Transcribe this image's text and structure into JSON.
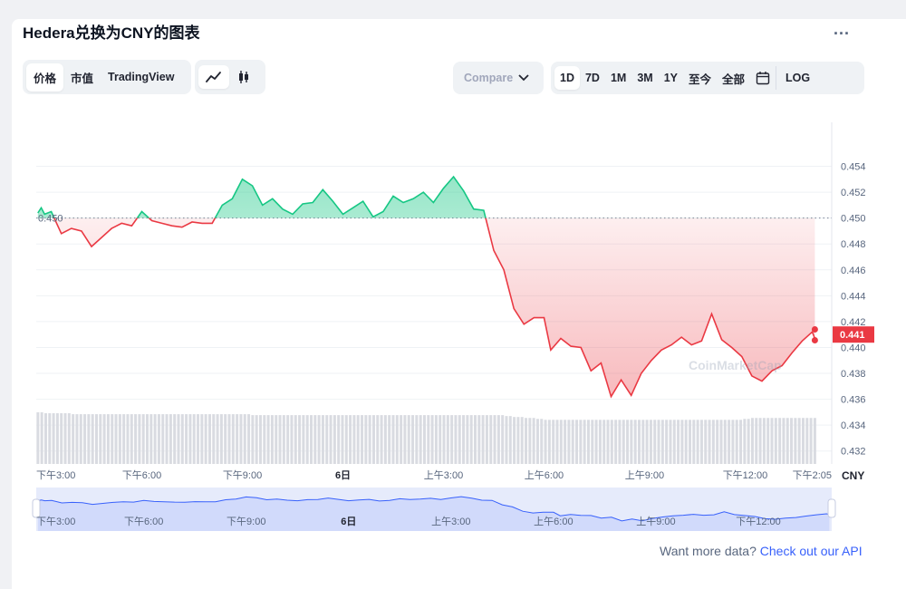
{
  "page": {
    "title": "Hedera兑换为CNY的图表",
    "more_label": "...",
    "chart_type_tabs": [
      {
        "label": "价格",
        "active": true
      },
      {
        "label": "市值",
        "active": false
      },
      {
        "label": "TradingView",
        "active": false
      }
    ],
    "style_tabs": [
      {
        "icon": "line-chart-icon",
        "active": true
      },
      {
        "icon": "candlestick-icon",
        "active": false
      }
    ],
    "compare_label": "Compare",
    "range_tabs": [
      {
        "label": "1D",
        "active": true
      },
      {
        "label": "7D",
        "active": false
      },
      {
        "label": "1M",
        "active": false
      },
      {
        "label": "3M",
        "active": false
      },
      {
        "label": "1Y",
        "active": false
      },
      {
        "label": "至今",
        "active": false
      },
      {
        "label": "全部",
        "active": false
      }
    ],
    "calendar_icon": "calendar-icon",
    "log_label": "LOG",
    "footer_text": "Want more data?",
    "footer_link": "Check out our API",
    "watermark": "CoinMarketCap",
    "colors": {
      "up": "#16c784",
      "down": "#ea3943",
      "grid": "#eff2f5",
      "axis_text": "#58667e",
      "volume": "#d9dbe1",
      "navigator": "#e6ebfb",
      "navigator_line": "#3861fb"
    }
  },
  "chart_data": {
    "type": "line",
    "currency_label": "CNY",
    "baseline": 0.45,
    "baseline_label": "0.450",
    "last_value": 0.441,
    "last_label": "0.441",
    "ylim": [
      0.431,
      0.456
    ],
    "y_ticks": [
      0.454,
      0.452,
      0.45,
      0.448,
      0.446,
      0.444,
      0.442,
      0.44,
      0.438,
      0.436,
      0.434,
      0.432
    ],
    "y_tick_labels": [
      "0.454",
      "0.452",
      "0.450",
      "0.448",
      "0.446",
      "0.444",
      "0.442",
      "0.440",
      "0.438",
      "0.436",
      "0.434",
      "0.432"
    ],
    "x_range": [
      14.85,
      38.15
    ],
    "x_ticks": [
      15,
      18,
      21,
      24,
      27,
      30,
      33,
      36,
      38.08
    ],
    "x_tick_labels": [
      "下午3:00",
      "下午6:00",
      "下午9:00",
      "6日",
      "上午3:00",
      "上午6:00",
      "上午9:00",
      "下午12:00",
      "下午2:05"
    ],
    "x": [
      14.9,
      15.0,
      15.1,
      15.3,
      15.6,
      15.9,
      16.2,
      16.5,
      16.8,
      17.1,
      17.4,
      17.7,
      18.0,
      18.3,
      18.6,
      18.9,
      19.2,
      19.5,
      19.8,
      20.1,
      20.4,
      20.7,
      21.0,
      21.3,
      21.6,
      21.9,
      22.2,
      22.5,
      22.8,
      23.1,
      23.4,
      23.7,
      24.0,
      24.3,
      24.6,
      24.9,
      25.2,
      25.5,
      25.8,
      26.1,
      26.4,
      26.7,
      27.0,
      27.3,
      27.6,
      27.9,
      28.2,
      28.5,
      28.8,
      29.1,
      29.4,
      29.7,
      30.0,
      30.2,
      30.5,
      30.8,
      31.1,
      31.4,
      31.7,
      32.0,
      32.3,
      32.6,
      32.9,
      33.2,
      33.5,
      33.8,
      34.1,
      34.4,
      34.7,
      35.0,
      35.3,
      35.6,
      35.9,
      36.2,
      36.5,
      36.8,
      37.1,
      37.4,
      37.7,
      38.0,
      38.08
    ],
    "y": [
      0.4504,
      0.4508,
      0.4503,
      0.4505,
      0.4488,
      0.4492,
      0.449,
      0.4478,
      0.4485,
      0.4492,
      0.4496,
      0.4494,
      0.4505,
      0.4498,
      0.4496,
      0.4494,
      0.4493,
      0.4497,
      0.4496,
      0.4496,
      0.451,
      0.4515,
      0.453,
      0.4525,
      0.451,
      0.4515,
      0.4507,
      0.4503,
      0.4511,
      0.4512,
      0.4522,
      0.4513,
      0.4503,
      0.4508,
      0.4513,
      0.4501,
      0.4505,
      0.4517,
      0.4512,
      0.4515,
      0.452,
      0.4512,
      0.4523,
      0.4532,
      0.4521,
      0.4507,
      0.4506,
      0.4475,
      0.446,
      0.443,
      0.4418,
      0.4423,
      0.4423,
      0.4398,
      0.4407,
      0.4401,
      0.44,
      0.4382,
      0.4388,
      0.4362,
      0.4375,
      0.4363,
      0.438,
      0.439,
      0.4398,
      0.4402,
      0.4408,
      0.4402,
      0.4405,
      0.4426,
      0.4406,
      0.44,
      0.4393,
      0.4378,
      0.4374,
      0.4382,
      0.4386,
      0.4396,
      0.4405,
      0.4412,
      0.4407
    ],
    "volume": [
      0.55,
      0.55,
      0.54,
      0.54,
      0.54,
      0.53,
      0.53,
      0.53,
      0.53,
      0.53,
      0.53,
      0.53,
      0.53,
      0.53,
      0.53,
      0.53,
      0.53,
      0.53,
      0.53,
      0.53,
      0.53,
      0.53,
      0.53,
      0.52,
      0.52,
      0.52,
      0.52,
      0.52,
      0.52,
      0.52,
      0.52,
      0.52,
      0.52,
      0.52,
      0.52,
      0.52,
      0.52,
      0.52,
      0.52,
      0.52,
      0.52,
      0.52,
      0.52,
      0.52,
      0.52,
      0.52,
      0.52,
      0.52,
      0.51,
      0.5,
      0.49,
      0.48,
      0.47,
      0.47,
      0.47,
      0.47,
      0.47,
      0.47,
      0.47,
      0.47,
      0.47,
      0.47,
      0.47,
      0.47,
      0.47,
      0.47,
      0.47,
      0.47,
      0.47,
      0.47,
      0.47,
      0.47,
      0.48,
      0.49,
      0.49,
      0.49,
      0.49,
      0.49,
      0.49,
      0.49,
      0.49
    ]
  }
}
